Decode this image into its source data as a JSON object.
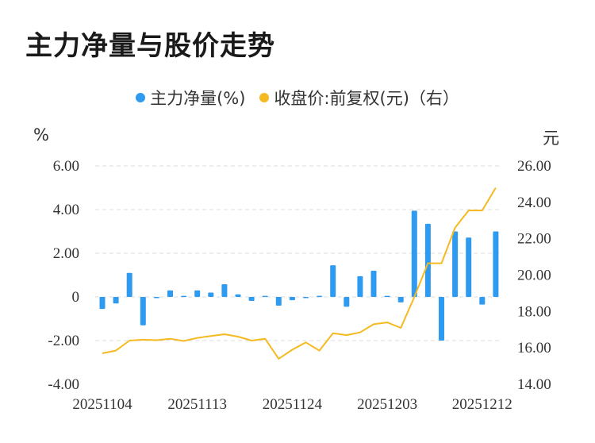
{
  "title": "主力净量与股价走势",
  "legend": [
    {
      "name": "主力净量(%)",
      "color": "#2f9bf0"
    },
    {
      "name": "收盘价:前复权(元)（右）",
      "color": "#f5b921"
    }
  ],
  "chart_data": {
    "type": "bar+line",
    "left_unit": "%",
    "right_unit": "元",
    "left_axis": {
      "ticks": [
        "6.00",
        "4.00",
        "2.00",
        "0",
        "-2.00",
        "-4.00"
      ],
      "min": -4,
      "max": 6
    },
    "right_axis": {
      "ticks": [
        "26.00",
        "24.00",
        "22.00",
        "20.00",
        "18.00",
        "16.00",
        "14.00"
      ],
      "min": 14,
      "max": 26
    },
    "x_ticks": [
      "20251104",
      "20251113",
      "20251124",
      "20251203",
      "20251212"
    ],
    "x_tick_index": [
      0,
      7,
      14,
      21,
      28
    ],
    "grid": "horizontal-dashed",
    "series": [
      {
        "name": "主力净量(%)",
        "type": "bar",
        "color": "#2f9bf0",
        "values": [
          -0.55,
          -0.3,
          1.1,
          -1.3,
          -0.05,
          0.3,
          0.05,
          0.3,
          0.2,
          0.58,
          0.12,
          -0.18,
          0.05,
          -0.4,
          -0.15,
          -0.05,
          0.05,
          1.45,
          -0.45,
          0.95,
          1.2,
          0.05,
          -0.25,
          3.95,
          3.35,
          -2.0,
          3.0,
          2.72,
          -0.35,
          3.0
        ]
      },
      {
        "name": "收盘价:前复权(元)（右）",
        "type": "line",
        "color": "#f5b921",
        "values": [
          15.7,
          15.85,
          16.4,
          16.45,
          16.42,
          16.5,
          16.38,
          16.55,
          16.65,
          16.75,
          16.62,
          16.4,
          16.5,
          15.4,
          15.9,
          16.3,
          15.85,
          16.8,
          16.7,
          16.85,
          17.3,
          17.4,
          17.1,
          18.8,
          20.65,
          20.65,
          22.6,
          23.55,
          23.55,
          24.8
        ]
      }
    ]
  }
}
